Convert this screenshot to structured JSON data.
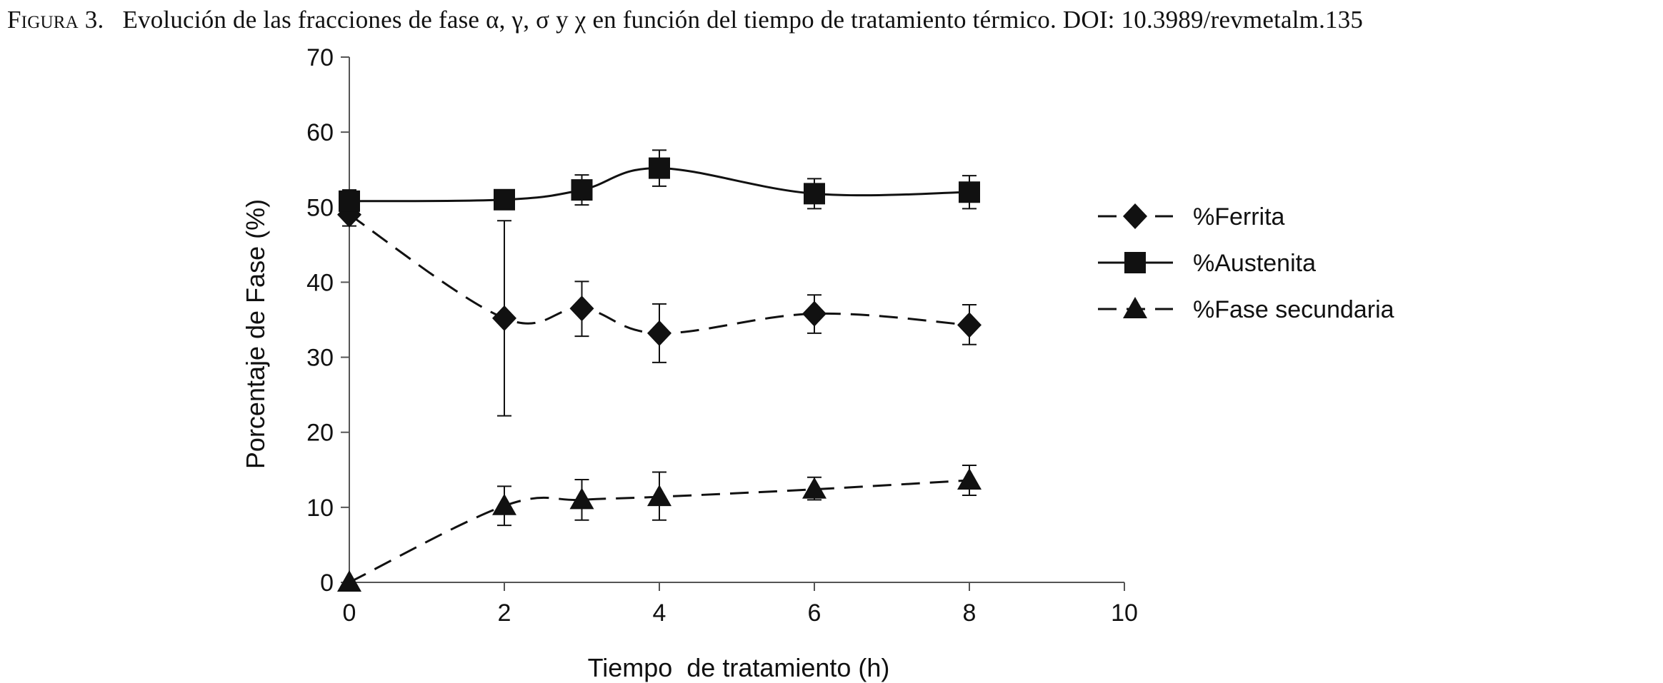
{
  "caption": {
    "label": "Figura 3.",
    "text": "Evolución de las fracciones de fase α, γ, σ y χ en función del tiempo de tratamiento térmico. DOI: 10.3989/revmetalm.135"
  },
  "chart_data": {
    "type": "line",
    "xlabel": "Tiempo  de tratamiento (h)",
    "ylabel": "Porcentaje de Fase (%)",
    "xlim": [
      0,
      10
    ],
    "ylim": [
      0,
      70
    ],
    "x_ticks": [
      0,
      2,
      4,
      6,
      8,
      10
    ],
    "y_ticks": [
      0,
      10,
      20,
      30,
      40,
      50,
      60,
      70
    ],
    "grid": false,
    "legend_position": "right",
    "series": [
      {
        "name": "%Ferrita",
        "marker": "diamond",
        "line": "dashed",
        "x": [
          0,
          2,
          3,
          4,
          6,
          8
        ],
        "y": [
          49,
          35.2,
          36.5,
          33.2,
          35.8,
          34.3
        ],
        "err_low": [
          47.5,
          22.2,
          32.8,
          29.3,
          33.2,
          31.7
        ],
        "err_high": [
          50.5,
          48.2,
          40.1,
          37.1,
          38.3,
          37.0
        ]
      },
      {
        "name": "%Austenita",
        "marker": "square",
        "line": "solid",
        "x": [
          0,
          2,
          3,
          4,
          6,
          8
        ],
        "y": [
          50.8,
          51.0,
          52.3,
          55.2,
          51.8,
          52.0
        ],
        "err_low": [
          49.3,
          50.0,
          50.3,
          52.8,
          49.8,
          49.8
        ],
        "err_high": [
          52.3,
          52.0,
          54.3,
          57.6,
          53.8,
          54.2
        ]
      },
      {
        "name": "%Fase secundaria",
        "marker": "triangle",
        "line": "dashed",
        "x": [
          0,
          2,
          3,
          4,
          6,
          8
        ],
        "y": [
          0,
          10.2,
          11.0,
          11.4,
          12.4,
          13.6
        ],
        "err_low": [
          0,
          7.6,
          8.3,
          8.3,
          11.0,
          11.6
        ],
        "err_high": [
          0,
          12.8,
          13.7,
          14.7,
          14.0,
          15.6
        ]
      }
    ]
  },
  "colors": {
    "ink": "#111111",
    "background": "#ffffff"
  }
}
